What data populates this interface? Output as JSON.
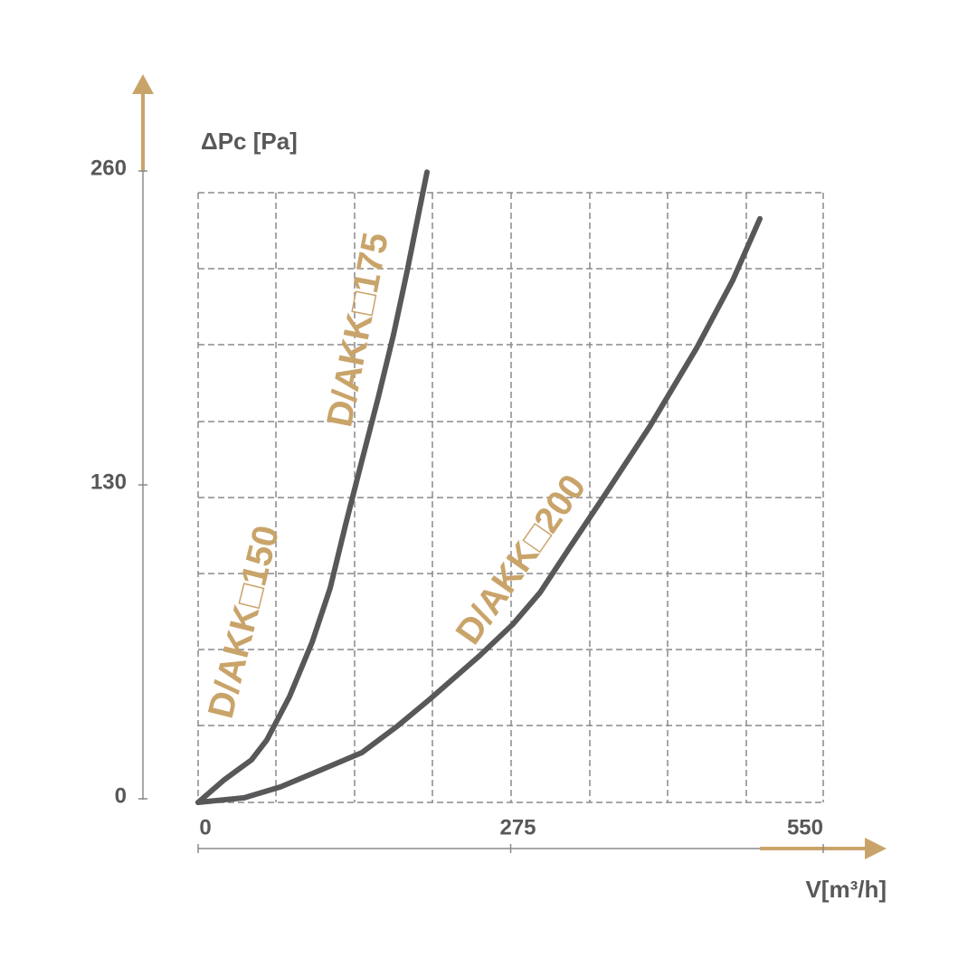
{
  "chart_data": {
    "type": "line",
    "y_label": "ΔPc [Pa]",
    "x_label": "V[m³/h]",
    "xlim": [
      0,
      550
    ],
    "ylim": [
      0,
      260
    ],
    "xticks": [
      0,
      275,
      550
    ],
    "yticks": [
      0,
      130,
      260
    ],
    "series": [
      {
        "color": "#58585a",
        "x": [
          0,
          23.1,
          47,
          60.5,
          80.4,
          100.3,
          116.2,
          129.7,
          144,
          158.4,
          171.9,
          183.9,
          193.4,
          201.4
        ],
        "values": [
          0,
          9.4,
          17.6,
          25.9,
          43.8,
          66.3,
          88.8,
          115,
          141.3,
          167.5,
          193.7,
          219.9,
          242.4,
          261
        ]
      },
      {
        "color": "#58585a",
        "x": [
          0,
          40.6,
          72.4,
          104.3,
          144.1,
          175.9,
          203.8,
          247.5,
          277,
          300.9,
          327.1,
          359,
          397.2,
          438.6,
          470.4,
          494.3
        ],
        "values": [
          0,
          1.9,
          6.4,
          12.7,
          20.6,
          31.8,
          42.7,
          60.7,
          73.8,
          86.9,
          105.7,
          128.1,
          155.5,
          188.1,
          216.2,
          241.7
        ]
      }
    ],
    "annotations": [
      "D/AKK□150",
      "D/AKK□175",
      "D/AKK□200"
    ]
  }
}
